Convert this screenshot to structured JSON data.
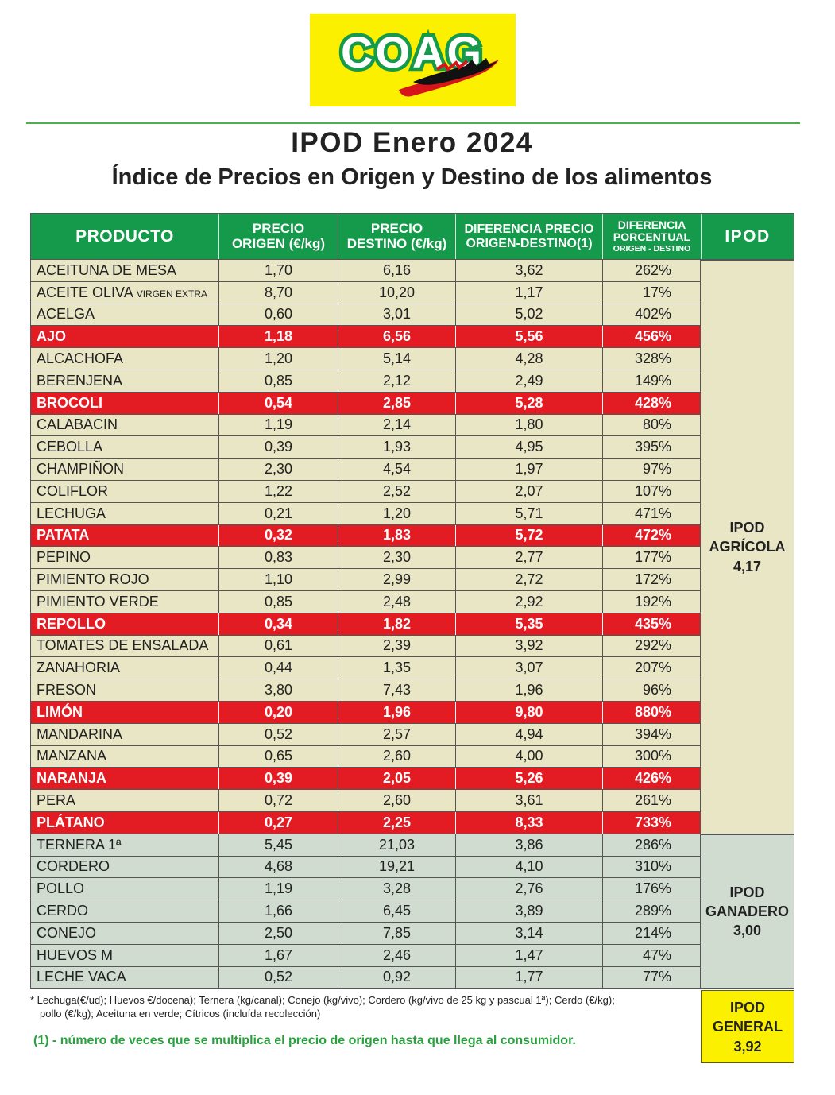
{
  "logo": {
    "text": "COAG",
    "brand_color": "#fbf000",
    "name_color": "#149a4a"
  },
  "title": "IPOD Enero 2024",
  "subtitle": "Índice de Precios en Origen y Destino de los alimentos",
  "headers": {
    "producto": "PRODUCTO",
    "precio_origen": [
      "PRECIO",
      "ORIGEN (€/kg)"
    ],
    "precio_destino": [
      "PRECIO",
      "DESTINO (€/kg)"
    ],
    "diferencia": [
      "DIFERENCIA PRECIO",
      "ORIGEN-DESTINO(1)"
    ],
    "porcentual": [
      "DIFERENCIA",
      "PORCENTUAL",
      "ORIGEN - DESTINO"
    ],
    "ipod": "IPOD"
  },
  "rows": [
    {
      "producto": "ACEITUNA DE MESA",
      "sub": "",
      "origen": "1,70",
      "destino": "6,16",
      "diferencia": "3,62",
      "porcentaje": "262%",
      "highlight": false,
      "group": "agricola"
    },
    {
      "producto": "ACEITE OLIVA",
      "sub": "VIRGEN EXTRA",
      "origen": "8,70",
      "destino": "10,20",
      "diferencia": "1,17",
      "porcentaje": "17%",
      "highlight": false,
      "group": "agricola"
    },
    {
      "producto": "ACELGA",
      "sub": "",
      "origen": "0,60",
      "destino": "3,01",
      "diferencia": "5,02",
      "porcentaje": "402%",
      "highlight": false,
      "group": "agricola"
    },
    {
      "producto": "AJO",
      "sub": "",
      "origen": "1,18",
      "destino": "6,56",
      "diferencia": "5,56",
      "porcentaje": "456%",
      "highlight": true,
      "group": "agricola"
    },
    {
      "producto": "ALCACHOFA",
      "sub": "",
      "origen": "1,20",
      "destino": "5,14",
      "diferencia": "4,28",
      "porcentaje": "328%",
      "highlight": false,
      "group": "agricola"
    },
    {
      "producto": "BERENJENA",
      "sub": "",
      "origen": "0,85",
      "destino": "2,12",
      "diferencia": "2,49",
      "porcentaje": "149%",
      "highlight": false,
      "group": "agricola"
    },
    {
      "producto": "BROCOLI",
      "sub": "",
      "origen": "0,54",
      "destino": "2,85",
      "diferencia": "5,28",
      "porcentaje": "428%",
      "highlight": true,
      "group": "agricola"
    },
    {
      "producto": "CALABACIN",
      "sub": "",
      "origen": "1,19",
      "destino": "2,14",
      "diferencia": "1,80",
      "porcentaje": "80%",
      "highlight": false,
      "group": "agricola"
    },
    {
      "producto": "CEBOLLA",
      "sub": "",
      "origen": "0,39",
      "destino": "1,93",
      "diferencia": "4,95",
      "porcentaje": "395%",
      "highlight": false,
      "group": "agricola"
    },
    {
      "producto": "CHAMPIÑON",
      "sub": "",
      "origen": "2,30",
      "destino": "4,54",
      "diferencia": "1,97",
      "porcentaje": "97%",
      "highlight": false,
      "group": "agricola"
    },
    {
      "producto": "COLIFLOR",
      "sub": "",
      "origen": "1,22",
      "destino": "2,52",
      "diferencia": "2,07",
      "porcentaje": "107%",
      "highlight": false,
      "group": "agricola"
    },
    {
      "producto": "LECHUGA",
      "sub": "",
      "origen": "0,21",
      "destino": "1,20",
      "diferencia": "5,71",
      "porcentaje": "471%",
      "highlight": false,
      "group": "agricola"
    },
    {
      "producto": "PATATA",
      "sub": "",
      "origen": "0,32",
      "destino": "1,83",
      "diferencia": "5,72",
      "porcentaje": "472%",
      "highlight": true,
      "group": "agricola"
    },
    {
      "producto": "PEPINO",
      "sub": "",
      "origen": "0,83",
      "destino": "2,30",
      "diferencia": "2,77",
      "porcentaje": "177%",
      "highlight": false,
      "group": "agricola"
    },
    {
      "producto": "PIMIENTO ROJO",
      "sub": "",
      "origen": "1,10",
      "destino": "2,99",
      "diferencia": "2,72",
      "porcentaje": "172%",
      "highlight": false,
      "group": "agricola"
    },
    {
      "producto": "PIMIENTO VERDE",
      "sub": "",
      "origen": "0,85",
      "destino": "2,48",
      "diferencia": "2,92",
      "porcentaje": "192%",
      "highlight": false,
      "group": "agricola"
    },
    {
      "producto": "REPOLLO",
      "sub": "",
      "origen": "0,34",
      "destino": "1,82",
      "diferencia": "5,35",
      "porcentaje": "435%",
      "highlight": true,
      "group": "agricola"
    },
    {
      "producto": "TOMATES DE ENSALADA",
      "sub": "",
      "origen": "0,61",
      "destino": "2,39",
      "diferencia": "3,92",
      "porcentaje": "292%",
      "highlight": false,
      "group": "agricola"
    },
    {
      "producto": "ZANAHORIA",
      "sub": "",
      "origen": "0,44",
      "destino": "1,35",
      "diferencia": "3,07",
      "porcentaje": "207%",
      "highlight": false,
      "group": "agricola"
    },
    {
      "producto": "FRESON",
      "sub": "",
      "origen": "3,80",
      "destino": "7,43",
      "diferencia": "1,96",
      "porcentaje": "96%",
      "highlight": false,
      "group": "agricola"
    },
    {
      "producto": "LIMÓN",
      "sub": "",
      "origen": "0,20",
      "destino": "1,96",
      "diferencia": "9,80",
      "porcentaje": "880%",
      "highlight": true,
      "group": "agricola"
    },
    {
      "producto": "MANDARINA",
      "sub": "",
      "origen": "0,52",
      "destino": "2,57",
      "diferencia": "4,94",
      "porcentaje": "394%",
      "highlight": false,
      "group": "agricola"
    },
    {
      "producto": "MANZANA",
      "sub": "",
      "origen": "0,65",
      "destino": "2,60",
      "diferencia": "4,00",
      "porcentaje": "300%",
      "highlight": false,
      "group": "agricola"
    },
    {
      "producto": "NARANJA",
      "sub": "",
      "origen": "0,39",
      "destino": "2,05",
      "diferencia": "5,26",
      "porcentaje": "426%",
      "highlight": true,
      "group": "agricola"
    },
    {
      "producto": "PERA",
      "sub": "",
      "origen": "0,72",
      "destino": "2,60",
      "diferencia": "3,61",
      "porcentaje": "261%",
      "highlight": false,
      "group": "agricola"
    },
    {
      "producto": "PLÁTANO",
      "sub": "",
      "origen": "0,27",
      "destino": "2,25",
      "diferencia": "8,33",
      "porcentaje": "733%",
      "highlight": true,
      "group": "agricola"
    },
    {
      "producto": "TERNERA 1ª",
      "sub": "",
      "origen": "5,45",
      "destino": "21,03",
      "diferencia": "3,86",
      "porcentaje": "286%",
      "highlight": false,
      "group": "ganadero"
    },
    {
      "producto": "CORDERO",
      "sub": "",
      "origen": "4,68",
      "destino": "19,21",
      "diferencia": "4,10",
      "porcentaje": "310%",
      "highlight": false,
      "group": "ganadero"
    },
    {
      "producto": "POLLO",
      "sub": "",
      "origen": "1,19",
      "destino": "3,28",
      "diferencia": "2,76",
      "porcentaje": "176%",
      "highlight": false,
      "group": "ganadero"
    },
    {
      "producto": "CERDO",
      "sub": "",
      "origen": "1,66",
      "destino": "6,45",
      "diferencia": "3,89",
      "porcentaje": "289%",
      "highlight": false,
      "group": "ganadero"
    },
    {
      "producto": "CONEJO",
      "sub": "",
      "origen": "2,50",
      "destino": "7,85",
      "diferencia": "3,14",
      "porcentaje": "214%",
      "highlight": false,
      "group": "ganadero"
    },
    {
      "producto": "HUEVOS M",
      "sub": "",
      "origen": "1,67",
      "destino": "2,46",
      "diferencia": "1,47",
      "porcentaje": "47%",
      "highlight": false,
      "group": "ganadero"
    },
    {
      "producto": "LECHE VACA",
      "sub": "",
      "origen": "0,52",
      "destino": "0,92",
      "diferencia": "1,77",
      "porcentaje": "77%",
      "highlight": false,
      "group": "ganadero"
    }
  ],
  "ipod_agricola": {
    "label1": "IPOD",
    "label2": "AGRÍCOLA",
    "value": "4,17"
  },
  "ipod_ganadero": {
    "label1": "IPOD",
    "label2": "GANADERO",
    "value": "3,00"
  },
  "ipod_general": {
    "label1": "IPOD",
    "label2": "GENERAL",
    "value": "3,92"
  },
  "note_line1": "* Lechuga(€/ud);  Huevos €/docena); Ternera (kg/canal); Conejo (kg/vivo); Cordero (kg/vivo de 25 kg y pascual 1ª); Cerdo (€/kg);",
  "note_line2": "pollo (€/kg); Aceituna en verde; Cítricos (incluída recolección)",
  "footnote": "(1) - número de veces que se multiplica el precio de origen hasta que llega al consumidor.",
  "colors": {
    "header_green": "#149a4a",
    "highlight_red": "#e31b23",
    "agricola_bg": "#e8e6c5",
    "ganadero_bg": "#cfdccf",
    "general_bg": "#fbf000"
  }
}
